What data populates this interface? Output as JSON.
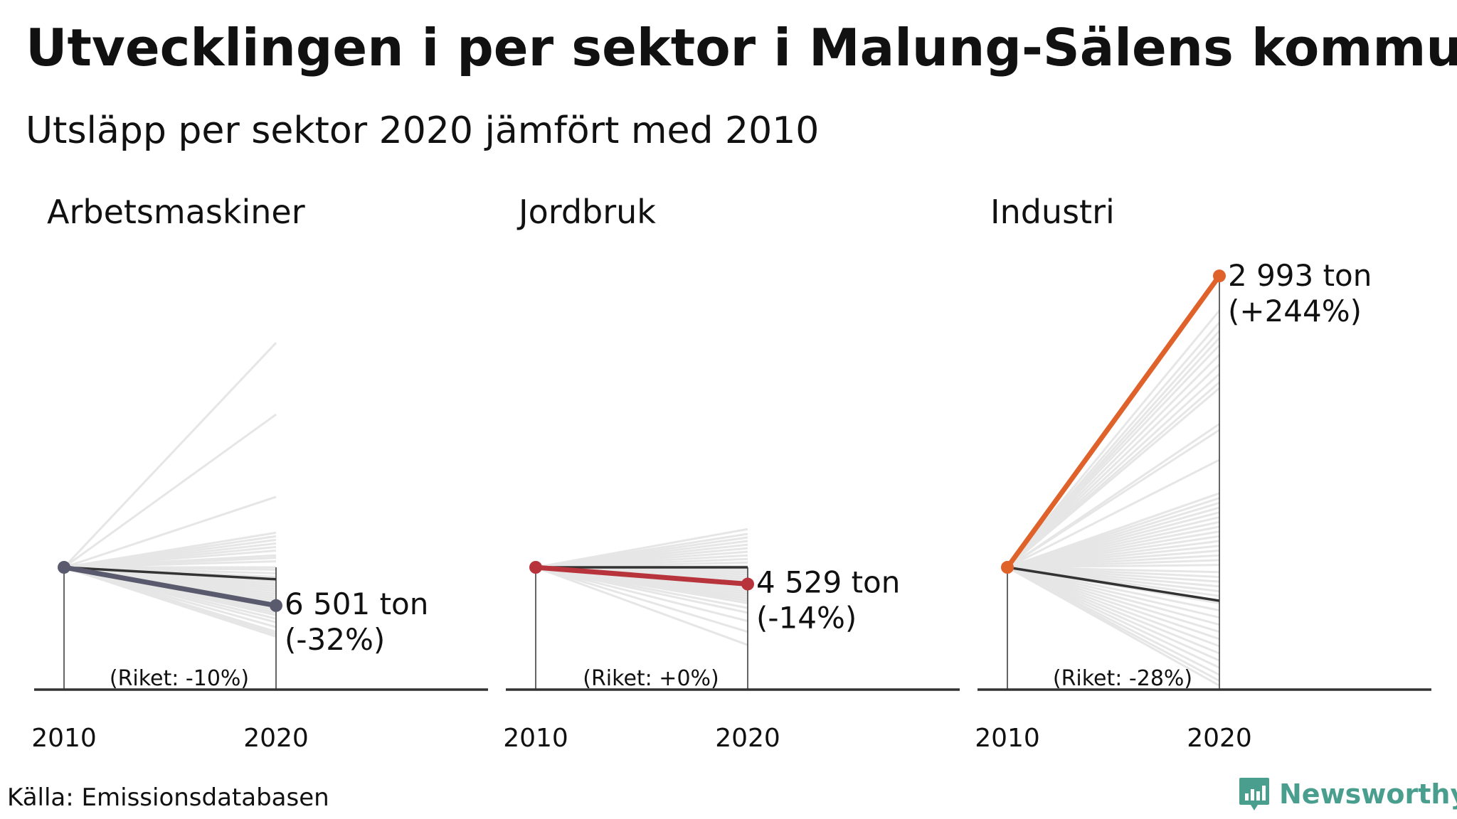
{
  "title": "Utvecklingen i per sektor i Malung-Sälens kommun",
  "subtitle": "Utsläpp per sektor 2020 jämfört med 2010",
  "source": "Källa: Emissionsdatabasen",
  "brand": "Newsworthy",
  "colors": {
    "background_lines": "#e6e6e6",
    "riket_line": "#333333",
    "axis": "#333333",
    "brand": "#4a9e8e"
  },
  "chart_data": [
    {
      "type": "line",
      "title": "Arbetsmaskiner",
      "x": [
        "2010",
        "2020"
      ],
      "color": "#5a5a6e",
      "value_label": "6 501 ton",
      "change_label": "(-32%)",
      "riket_label": "(Riket: -10%)",
      "change_pct": -32,
      "riket_change_pct": -10,
      "other_municipalities_change_pct": [
        188,
        128,
        59,
        8,
        -2,
        -5,
        -8,
        -10,
        -12,
        -14,
        -16,
        -18,
        -20,
        -22,
        -24,
        -26,
        -28,
        -30,
        -34,
        -36,
        -38,
        -40,
        -43,
        -46,
        -50,
        -54,
        -56,
        -58,
        0,
        5,
        10,
        14,
        17,
        20,
        23,
        26,
        29
      ]
    },
    {
      "type": "line",
      "title": "Jordbruk",
      "x": [
        "2010",
        "2020"
      ],
      "color": "#b8343c",
      "value_label": "4 529 ton",
      "change_label": "(-14%)",
      "riket_label": "(Riket: +0%)",
      "change_pct": -14,
      "riket_change_pct": 0,
      "other_municipalities_change_pct": [
        32,
        28,
        25,
        22,
        19,
        16,
        13,
        10,
        7,
        4,
        1,
        -2,
        -4,
        -6,
        -8,
        -10,
        -12,
        -16,
        -18,
        -20,
        -22,
        -24,
        -26,
        -28,
        -30,
        -34,
        -38,
        -45,
        -54,
        -65
      ]
    },
    {
      "type": "line",
      "title": "Industri",
      "x": [
        "2010",
        "2020"
      ],
      "color": "#e0622b",
      "value_label": "2 993 ton",
      "change_label": "(+244%)",
      "riket_label": "(Riket: -28%)",
      "change_pct": 244,
      "riket_change_pct": -28,
      "other_municipalities_change_pct": [
        215,
        205,
        198,
        192,
        186,
        178,
        170,
        162,
        155,
        150,
        120,
        115,
        90,
        62,
        58,
        54,
        50,
        46,
        42,
        38,
        34,
        30,
        26,
        22,
        18,
        14,
        10,
        6,
        2,
        -4,
        -8,
        -12,
        -16,
        -20,
        -24,
        -30,
        -36,
        -42,
        -48,
        -54,
        -60,
        -66,
        -72,
        -78,
        -84,
        -90,
        -95,
        -99
      ]
    }
  ]
}
